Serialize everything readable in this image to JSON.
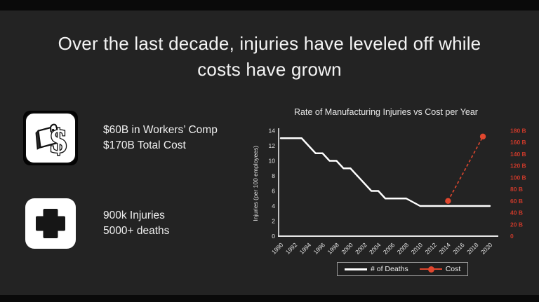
{
  "slide": {
    "title_line1": "Over the last decade, injuries have leveled off while",
    "title_line2": "costs have grown",
    "background": "#232323",
    "accent_red": "#e1472e",
    "letterbox_color": "#0a0a0a"
  },
  "stats": [
    {
      "icon": "wallet-dollar-icon",
      "line1": "$60B in Workers’ Comp",
      "line2": "$170B Total Cost"
    },
    {
      "icon": "medical-cross-icon",
      "line1": "900k Injuries",
      "line2": "5000+ deaths"
    }
  ],
  "chart_data": {
    "type": "line",
    "title": "Rate of Manufacturing Injuries vs Cost per Year",
    "ylabel": "Injuries (per 100 employees)",
    "grid": false,
    "legend_position": "bottom",
    "x_ticks": [
      1990,
      1992,
      1994,
      1996,
      1998,
      2000,
      2002,
      2004,
      2006,
      2008,
      2010,
      2012,
      2014,
      2016,
      2018,
      2020
    ],
    "left_axis": {
      "min": 0,
      "max": 14,
      "tick_step": 2,
      "label_color": "#e3e3e3"
    },
    "right_axis": {
      "min": 0,
      "max": 180,
      "tick_step": 20,
      "unit": "B",
      "label_color": "#c9392a"
    },
    "series": [
      {
        "name": "# of Deaths",
        "axis": "left",
        "color": "#ffffff",
        "style": "solid",
        "x": [
          1990,
          1991,
          1992,
          1993,
          1994,
          1995,
          1996,
          1997,
          1998,
          1999,
          2000,
          2001,
          2002,
          2003,
          2004,
          2005,
          2006,
          2007,
          2008,
          2009,
          2010,
          2011,
          2012,
          2013,
          2014,
          2015,
          2016,
          2017,
          2018,
          2019,
          2020
        ],
        "values": [
          13,
          13,
          13,
          13,
          12,
          11,
          11,
          10,
          10,
          9,
          9,
          8,
          7,
          6,
          6,
          5,
          5,
          5,
          5,
          4.5,
          4,
          4,
          4,
          4,
          4,
          4,
          4,
          4,
          4,
          4,
          4
        ]
      },
      {
        "name": "Cost",
        "axis": "right",
        "color": "#e1472e",
        "style": "dashed-markers",
        "x": [
          2014,
          2019
        ],
        "values": [
          60,
          170
        ]
      }
    ]
  }
}
